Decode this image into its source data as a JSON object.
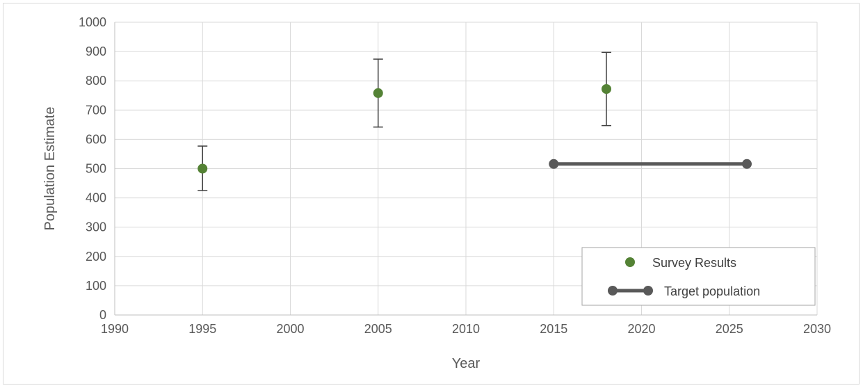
{
  "chart_data": {
    "type": "scatter",
    "title": "",
    "xlabel": "Year",
    "ylabel": "Population Estimate",
    "xlim": [
      1990,
      2030
    ],
    "ylim": [
      0,
      1000
    ],
    "x_ticks": [
      1990,
      1995,
      2000,
      2005,
      2010,
      2015,
      2020,
      2025,
      2030
    ],
    "y_ticks": [
      0,
      100,
      200,
      300,
      400,
      500,
      600,
      700,
      800,
      900,
      1000
    ],
    "grid": true,
    "legend_position": "bottom-right",
    "series": [
      {
        "name": "Survey Results",
        "style": "markers-with-error-bars",
        "color": "#548235",
        "points": [
          {
            "x": 1995,
            "y": 500,
            "y_low": 425,
            "y_high": 577
          },
          {
            "x": 2005,
            "y": 758,
            "y_low": 642,
            "y_high": 874
          },
          {
            "x": 2018,
            "y": 772,
            "y_low": 647,
            "y_high": 897
          }
        ]
      },
      {
        "name": "Target population",
        "style": "line-with-markers",
        "color": "#595959",
        "points": [
          {
            "x": 2015,
            "y": 516
          },
          {
            "x": 2026,
            "y": 516
          }
        ]
      }
    ]
  }
}
